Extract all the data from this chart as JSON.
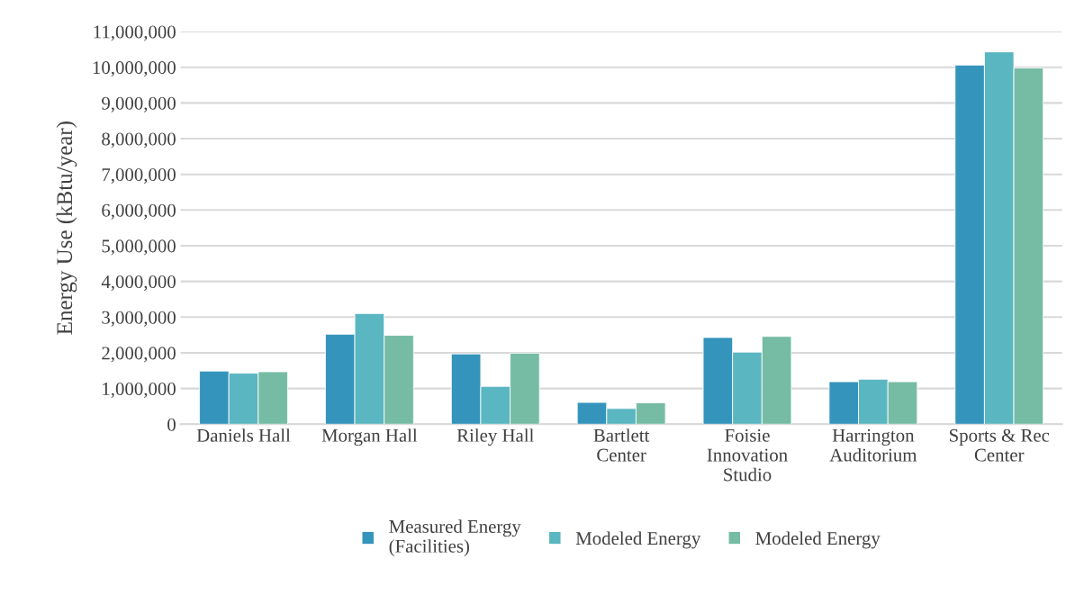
{
  "chart_data": {
    "type": "bar",
    "ylabel": "Energy Use (kBtu/year)",
    "categories": [
      "Daniels Hall",
      "Morgan Hall",
      "Riley Hall",
      "Bartlett\nCenter",
      "Foisie\nInnovation\nStudio",
      "Harrington\nAuditorium",
      "Sports & Rec\nCenter"
    ],
    "series": [
      {
        "name": "Measured Energy\n(Facilities)",
        "color": "#3594bb",
        "values": [
          1490000,
          2520000,
          1970000,
          610000,
          2430000,
          1190000,
          10060000
        ]
      },
      {
        "name": "Modeled Energy",
        "color": "#5ab6c1",
        "values": [
          1430000,
          3100000,
          1060000,
          440000,
          2020000,
          1260000,
          10430000
        ]
      },
      {
        "name": "Modeled Energy",
        "color": "#76bca5",
        "values": [
          1470000,
          2490000,
          1990000,
          600000,
          2460000,
          1190000,
          9980000
        ]
      }
    ],
    "ylim": [
      0,
      11000000
    ],
    "yticks": [
      {
        "value": 0,
        "label": "0"
      },
      {
        "value": 1000000,
        "label": "1,000,000"
      },
      {
        "value": 2000000,
        "label": "2,000,000"
      },
      {
        "value": 3000000,
        "label": "3,000,000"
      },
      {
        "value": 4000000,
        "label": "4,000,000"
      },
      {
        "value": 5000000,
        "label": "5,000,000"
      },
      {
        "value": 6000000,
        "label": "6,000,000"
      },
      {
        "value": 7000000,
        "label": "7,000,000"
      },
      {
        "value": 8000000,
        "label": "8,000,000"
      },
      {
        "value": 9000000,
        "label": "9,000,000"
      },
      {
        "value": 10000000,
        "label": "10,000,000"
      },
      {
        "value": 11000000,
        "label": "11,000,000"
      }
    ],
    "grid": "y",
    "legend": "bottom"
  }
}
